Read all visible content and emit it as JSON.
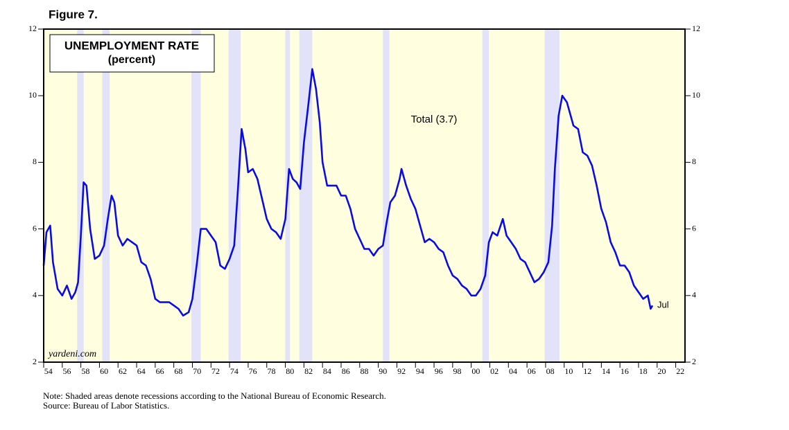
{
  "chart_data": {
    "type": "line",
    "figure_label": "Figure 7.",
    "title": "UNEMPLOYMENT RATE",
    "subtitle": "(percent)",
    "watermark": "yardeni.com",
    "end_label": "Jul",
    "notes": [
      "Note: Shaded areas denote recessions according to the National Bureau of Economic Research.",
      "Source: Bureau of Labor Statistics."
    ],
    "x": [
      1954.0,
      1954.3,
      1954.7,
      1955.0,
      1955.5,
      1956.0,
      1956.5,
      1957.0,
      1957.4,
      1957.7,
      1958.0,
      1958.3,
      1958.6,
      1959.0,
      1959.5,
      1960.0,
      1960.5,
      1960.9,
      1961.3,
      1961.6,
      1962.0,
      1962.5,
      1963.0,
      1963.5,
      1964.0,
      1964.5,
      1965.0,
      1965.5,
      1966.0,
      1966.5,
      1967.0,
      1967.5,
      1968.0,
      1968.5,
      1969.0,
      1969.6,
      1970.0,
      1970.5,
      1970.9,
      1971.5,
      1972.0,
      1972.5,
      1973.0,
      1973.5,
      1974.0,
      1974.5,
      1974.9,
      1975.3,
      1975.7,
      1976.0,
      1976.5,
      1977.0,
      1977.5,
      1978.0,
      1978.5,
      1979.0,
      1979.5,
      1980.0,
      1980.4,
      1980.8,
      1981.2,
      1981.6,
      1982.0,
      1982.5,
      1982.9,
      1983.3,
      1983.7,
      1984.0,
      1984.5,
      1985.0,
      1985.5,
      1986.0,
      1986.5,
      1987.0,
      1987.5,
      1988.0,
      1988.5,
      1989.0,
      1989.5,
      1990.0,
      1990.5,
      1990.9,
      1991.3,
      1991.8,
      1992.3,
      1992.5,
      1993.0,
      1993.5,
      1994.0,
      1994.5,
      1995.0,
      1995.5,
      1996.0,
      1996.5,
      1997.0,
      1997.5,
      1998.0,
      1998.5,
      1999.0,
      1999.5,
      2000.0,
      2000.5,
      2001.0,
      2001.5,
      2001.9,
      2002.3,
      2002.8,
      2003.4,
      2003.8,
      2004.3,
      2004.8,
      2005.3,
      2005.8,
      2006.3,
      2006.8,
      2007.3,
      2007.8,
      2008.3,
      2008.7,
      2009.0,
      2009.4,
      2009.8,
      2010.3,
      2010.7,
      2011.0,
      2011.5,
      2012.0,
      2012.5,
      2013.0,
      2013.5,
      2014.0,
      2014.5,
      2015.0,
      2015.5,
      2016.0,
      2016.5,
      2017.0,
      2017.5,
      2018.0,
      2018.5,
      2019.0,
      2019.3,
      2019.5
    ],
    "series": [
      {
        "name": "Total (3.7)",
        "color": "#0a0ae6",
        "values": [
          4.9,
          5.9,
          6.1,
          5.0,
          4.2,
          4.0,
          4.3,
          3.9,
          4.1,
          4.4,
          5.8,
          7.4,
          7.3,
          6.0,
          5.1,
          5.2,
          5.5,
          6.3,
          7.0,
          6.8,
          5.8,
          5.5,
          5.7,
          5.6,
          5.5,
          5.0,
          4.9,
          4.5,
          3.9,
          3.8,
          3.8,
          3.8,
          3.7,
          3.6,
          3.4,
          3.5,
          3.9,
          5.0,
          6.0,
          6.0,
          5.8,
          5.6,
          4.9,
          4.8,
          5.1,
          5.5,
          7.2,
          9.0,
          8.4,
          7.7,
          7.8,
          7.5,
          6.9,
          6.3,
          6.0,
          5.9,
          5.7,
          6.3,
          7.8,
          7.5,
          7.4,
          7.2,
          8.6,
          9.8,
          10.8,
          10.2,
          9.2,
          8.0,
          7.3,
          7.3,
          7.3,
          7.0,
          7.0,
          6.6,
          6.0,
          5.7,
          5.4,
          5.4,
          5.2,
          5.4,
          5.5,
          6.2,
          6.8,
          7.0,
          7.5,
          7.8,
          7.3,
          6.9,
          6.6,
          6.1,
          5.6,
          5.7,
          5.6,
          5.4,
          5.3,
          4.9,
          4.6,
          4.5,
          4.3,
          4.2,
          4.0,
          4.0,
          4.2,
          4.6,
          5.6,
          5.9,
          5.8,
          6.3,
          5.8,
          5.6,
          5.4,
          5.1,
          5.0,
          4.7,
          4.4,
          4.5,
          4.7,
          5.0,
          6.1,
          7.8,
          9.4,
          10.0,
          9.8,
          9.4,
          9.1,
          9.0,
          8.3,
          8.2,
          7.9,
          7.3,
          6.6,
          6.2,
          5.6,
          5.3,
          4.9,
          4.9,
          4.7,
          4.3,
          4.1,
          3.9,
          4.0,
          3.6,
          3.7
        ]
      }
    ],
    "recessions": [
      [
        1957.6,
        1958.3
      ],
      [
        1960.3,
        1961.1
      ],
      [
        1969.9,
        1970.9
      ],
      [
        1973.9,
        1975.2
      ],
      [
        1980.0,
        1980.5
      ],
      [
        1981.5,
        1982.9
      ],
      [
        1990.5,
        1991.2
      ],
      [
        2001.2,
        2001.9
      ],
      [
        2007.9,
        2009.5
      ]
    ],
    "background_color": "#ffffe0",
    "recession_color": "#e2e2f8",
    "xlim": [
      1954,
      2023
    ],
    "ylim": [
      2,
      12
    ],
    "yticks": [
      2,
      4,
      6,
      8,
      10,
      12
    ],
    "xticks": [
      {
        "value": 1954,
        "label": "54"
      },
      {
        "value": 1956,
        "label": "56"
      },
      {
        "value": 1958,
        "label": "58"
      },
      {
        "value": 1960,
        "label": "60"
      },
      {
        "value": 1962,
        "label": "62"
      },
      {
        "value": 1964,
        "label": "64"
      },
      {
        "value": 1966,
        "label": "66"
      },
      {
        "value": 1968,
        "label": "68"
      },
      {
        "value": 1970,
        "label": "70"
      },
      {
        "value": 1972,
        "label": "72"
      },
      {
        "value": 1974,
        "label": "74"
      },
      {
        "value": 1976,
        "label": "76"
      },
      {
        "value": 1978,
        "label": "78"
      },
      {
        "value": 1980,
        "label": "80"
      },
      {
        "value": 1982,
        "label": "82"
      },
      {
        "value": 1984,
        "label": "84"
      },
      {
        "value": 1986,
        "label": "86"
      },
      {
        "value": 1988,
        "label": "88"
      },
      {
        "value": 1990,
        "label": "90"
      },
      {
        "value": 1992,
        "label": "92"
      },
      {
        "value": 1994,
        "label": "94"
      },
      {
        "value": 1996,
        "label": "96"
      },
      {
        "value": 1998,
        "label": "98"
      },
      {
        "value": 2000,
        "label": "00"
      },
      {
        "value": 2002,
        "label": "02"
      },
      {
        "value": 2004,
        "label": "04"
      },
      {
        "value": 2006,
        "label": "06"
      },
      {
        "value": 2008,
        "label": "08"
      },
      {
        "value": 2010,
        "label": "10"
      },
      {
        "value": 2012,
        "label": "12"
      },
      {
        "value": 2014,
        "label": "14"
      },
      {
        "value": 2016,
        "label": "16"
      },
      {
        "value": 2018,
        "label": "18"
      },
      {
        "value": 2020,
        "label": "20"
      },
      {
        "value": 2022,
        "label": "22"
      }
    ]
  }
}
